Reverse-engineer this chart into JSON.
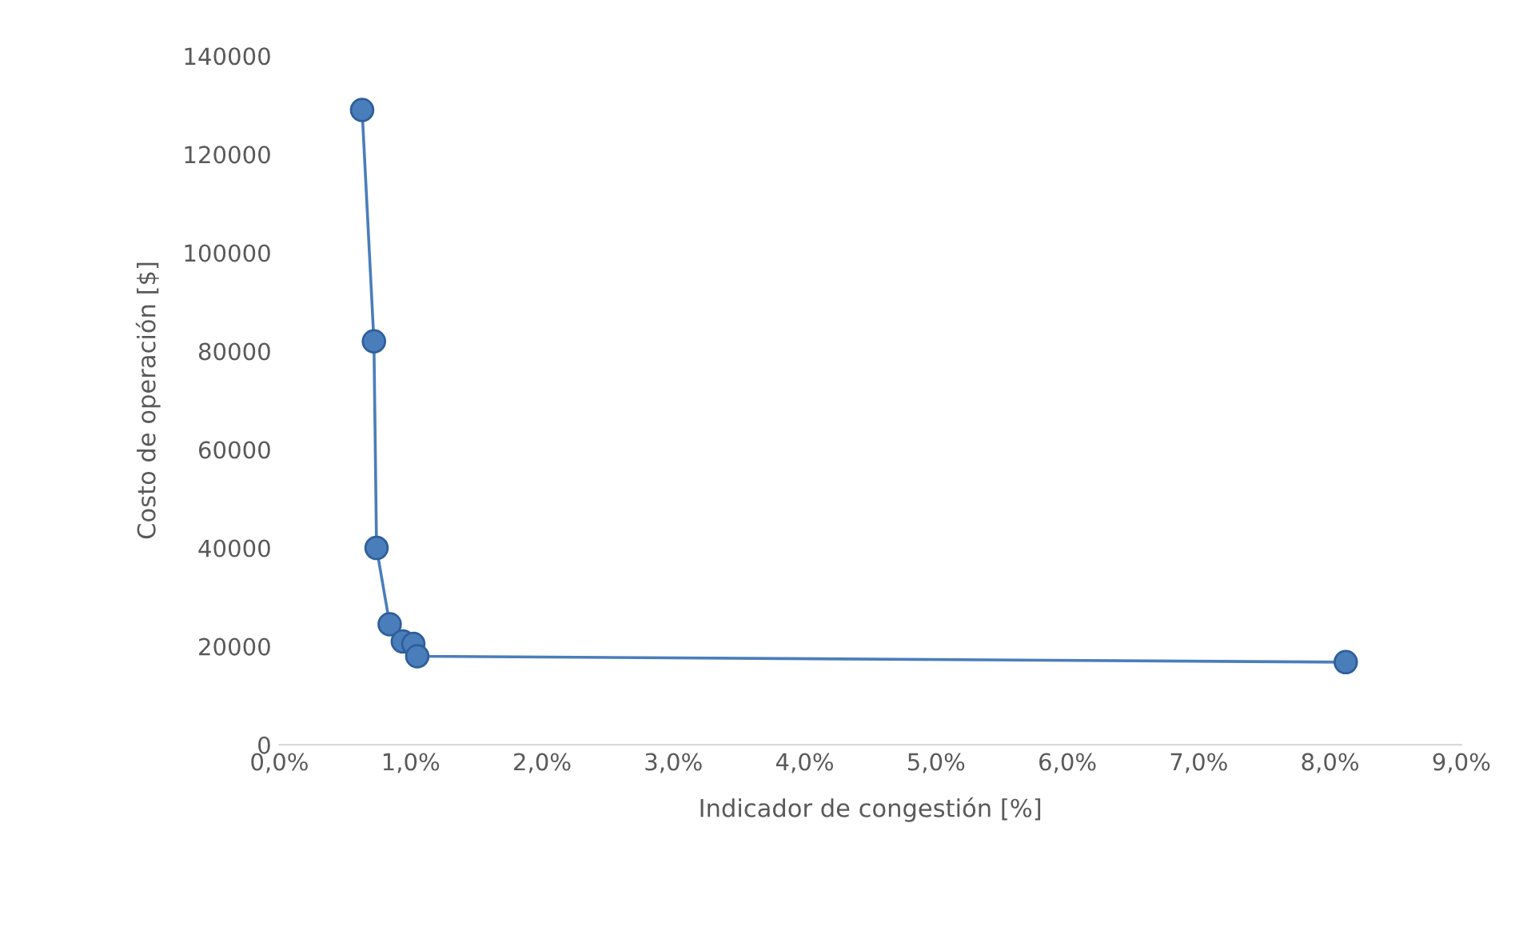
{
  "chart_data": {
    "type": "line",
    "xlabel": "Indicador de congestión [%]",
    "ylabel": "Costo de operación [$]",
    "series": [
      {
        "color": "#4a7ebb",
        "x": [
          0.63,
          0.72,
          0.74,
          0.84,
          0.94,
          1.02,
          1.05,
          8.12
        ],
        "values": [
          129000,
          82000,
          40000,
          24500,
          21000,
          20500,
          18000,
          16800
        ]
      }
    ],
    "xlim": [
      0,
      9
    ],
    "xticks": [
      {
        "value": 0,
        "label": "0,0%"
      },
      {
        "value": 1,
        "label": "1,0%"
      },
      {
        "value": 2,
        "label": "2,0%"
      },
      {
        "value": 3,
        "label": "3,0%"
      },
      {
        "value": 4,
        "label": "4,0%"
      },
      {
        "value": 5,
        "label": "5,0%"
      },
      {
        "value": 6,
        "label": "6,0%"
      },
      {
        "value": 7,
        "label": "7,0%"
      },
      {
        "value": 8,
        "label": "8,0%"
      },
      {
        "value": 9,
        "label": "9,0%"
      }
    ],
    "ylim": [
      0,
      140000
    ],
    "yticks": [
      0,
      20000,
      40000,
      60000,
      80000,
      100000,
      120000,
      140000
    ],
    "marker": "circle",
    "line_style": "solid",
    "grid": false,
    "legend": false
  }
}
